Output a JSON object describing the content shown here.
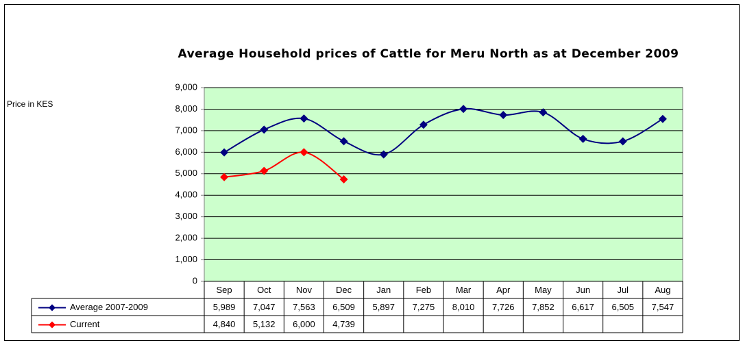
{
  "chart_data": {
    "type": "line",
    "title": "Average Household prices of Cattle for Meru North as at December 2009",
    "y_label": "Price in KES",
    "categories": [
      "Sep",
      "Oct",
      "Nov",
      "Dec",
      "Jan",
      "Feb",
      "Mar",
      "Apr",
      "May",
      "Jun",
      "Jul",
      "Aug"
    ],
    "series": [
      {
        "name": "Average 2007-2009",
        "color": "#000080",
        "values": [
          5989,
          7047,
          7563,
          6509,
          5897,
          7275,
          8010,
          7726,
          7852,
          6617,
          6505,
          7547
        ],
        "value_labels": [
          "5,989",
          "7,047",
          "7,563",
          "6,509",
          "5,897",
          "7,275",
          "8,010",
          "7,726",
          "7,852",
          "6,617",
          "6,505",
          "7,547"
        ]
      },
      {
        "name": "Current",
        "color": "#ff0000",
        "values": [
          4840,
          5132,
          6000,
          4739,
          null,
          null,
          null,
          null,
          null,
          null,
          null,
          null
        ],
        "value_labels": [
          "4,840",
          "5,132",
          "6,000",
          "4,739",
          null,
          null,
          null,
          null,
          null,
          null,
          null,
          null
        ]
      }
    ],
    "ylim": [
      0,
      9000
    ],
    "yticks": [
      0,
      {
        "value": 1000,
        "label": "1,000"
      },
      {
        "value": 2000,
        "label": "2,000"
      },
      {
        "value": 3000,
        "label": "3,000"
      },
      {
        "value": 4000,
        "label": "4,000"
      },
      {
        "value": 5000,
        "label": "5,000"
      },
      {
        "value": 6000,
        "label": "6,000"
      },
      {
        "value": 7000,
        "label": "7,000"
      },
      {
        "value": 8000,
        "label": "8,000"
      },
      {
        "value": 9000,
        "label": "9,000"
      }
    ],
    "grid": true,
    "plot_background": "#ccffcc",
    "data_table": true
  }
}
